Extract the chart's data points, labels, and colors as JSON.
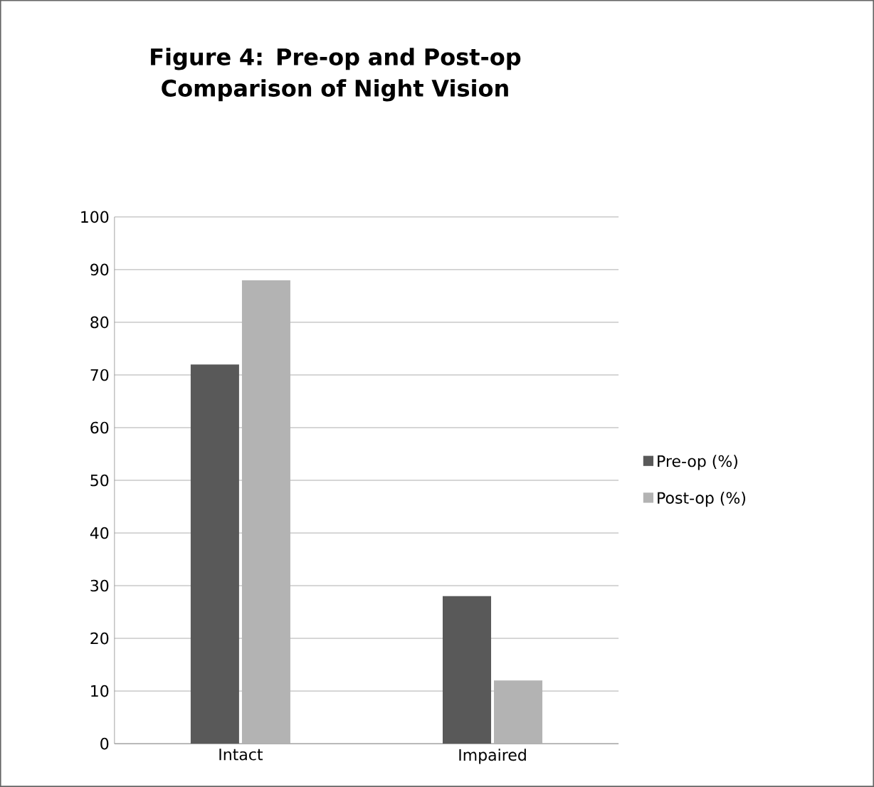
{
  "chart_data": {
    "type": "bar",
    "title": "Figure 4: Pre-op and Post-op Comparison of Night Vision",
    "categories": [
      "Intact",
      "Impaired"
    ],
    "series": [
      {
        "name": "Pre-op (%)",
        "color": "#595959",
        "values": [
          72,
          28
        ]
      },
      {
        "name": "Post-op (%)",
        "color": "#b3b3b3",
        "values": [
          88,
          12
        ]
      }
    ],
    "ylim": [
      0,
      100
    ],
    "yticks": [
      0,
      10,
      20,
      30,
      40,
      50,
      60,
      70,
      80,
      90,
      100
    ],
    "grid": "y",
    "legend": "right"
  }
}
